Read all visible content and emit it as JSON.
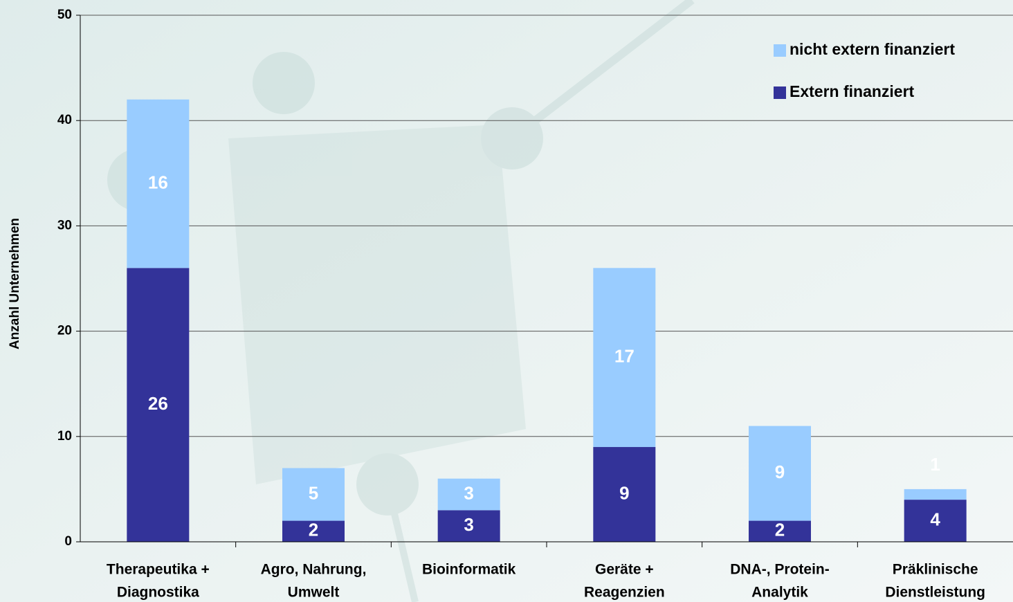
{
  "chart_data": {
    "type": "stacked_bar",
    "ylabel": "Anzahl Unternehmen",
    "categories": [
      [
        "Therapeutika +",
        "Diagnostika"
      ],
      [
        "Agro, Nahrung,",
        "Umwelt"
      ],
      [
        "Bioinformatik"
      ],
      [
        "Geräte +",
        "Reagenzien"
      ],
      [
        "DNA-, Protein-",
        "Analytik"
      ],
      [
        "Präklinische",
        "Dienstleistung"
      ]
    ],
    "series": [
      {
        "name": "Extern finanziert",
        "color": "#333399",
        "values": [
          26,
          2,
          3,
          9,
          2,
          4
        ]
      },
      {
        "name": "nicht extern finanziert",
        "color": "#99ccff",
        "values": [
          16,
          5,
          3,
          17,
          9,
          1
        ]
      }
    ],
    "ylim": [
      0,
      50
    ],
    "yticks": [
      0,
      10,
      20,
      30,
      40,
      50
    ],
    "grid": true,
    "legend": "top-right"
  }
}
